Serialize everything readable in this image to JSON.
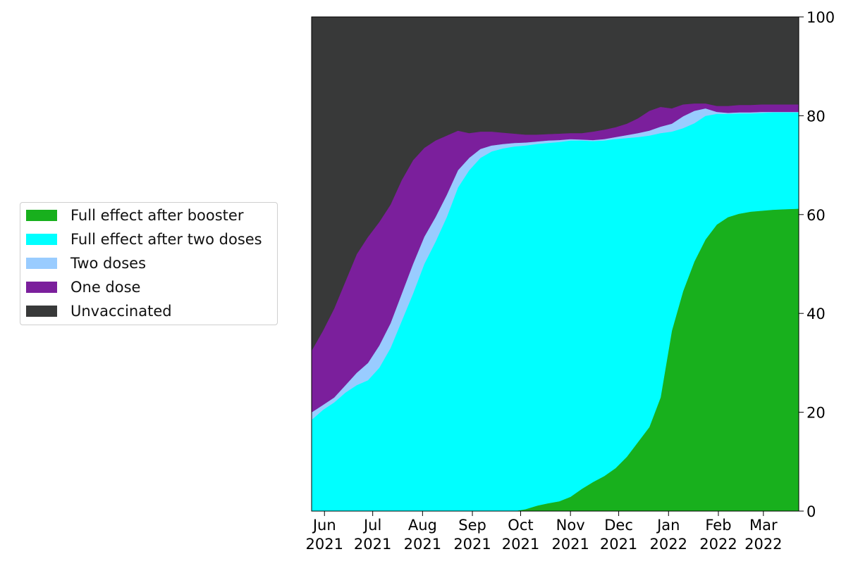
{
  "chart_data": {
    "type": "area",
    "stacked": true,
    "title": "",
    "xlabel": "",
    "ylabel": "",
    "ylim": [
      0,
      100
    ],
    "xlim": [
      "2021-05-24",
      "2022-03-23"
    ],
    "yticks": [
      0,
      20,
      40,
      60,
      80,
      100
    ],
    "yaxis_side": "right",
    "grid": false,
    "legend_placement": "left",
    "xticks": [
      {
        "date": "2021-06-01",
        "month": "Jun",
        "year": "2021"
      },
      {
        "date": "2021-07-01",
        "month": "Jul",
        "year": "2021"
      },
      {
        "date": "2021-08-01",
        "month": "Aug",
        "year": "2021"
      },
      {
        "date": "2021-09-01",
        "month": "Sep",
        "year": "2021"
      },
      {
        "date": "2021-10-01",
        "month": "Oct",
        "year": "2021"
      },
      {
        "date": "2021-11-01",
        "month": "Nov",
        "year": "2021"
      },
      {
        "date": "2021-12-01",
        "month": "Dec",
        "year": "2021"
      },
      {
        "date": "2022-01-01",
        "month": "Jan",
        "year": "2022"
      },
      {
        "date": "2022-02-01",
        "month": "Feb",
        "year": "2022"
      },
      {
        "date": "2022-03-01",
        "month": "Mar",
        "year": "2022"
      }
    ],
    "x": [
      "2021-05-24",
      "2021-05-31",
      "2021-06-07",
      "2021-06-14",
      "2021-06-21",
      "2021-06-28",
      "2021-07-05",
      "2021-07-12",
      "2021-07-19",
      "2021-07-26",
      "2021-08-02",
      "2021-08-09",
      "2021-08-16",
      "2021-08-23",
      "2021-08-30",
      "2021-09-06",
      "2021-09-13",
      "2021-09-20",
      "2021-09-27",
      "2021-10-04",
      "2021-10-11",
      "2021-10-18",
      "2021-10-25",
      "2021-11-01",
      "2021-11-08",
      "2021-11-15",
      "2021-11-22",
      "2021-11-29",
      "2021-12-06",
      "2021-12-13",
      "2021-12-20",
      "2021-12-27",
      "2022-01-03",
      "2022-01-10",
      "2022-01-17",
      "2022-01-24",
      "2022-01-31",
      "2022-02-07",
      "2022-02-14",
      "2022-02-21",
      "2022-02-28",
      "2022-03-07",
      "2022-03-14",
      "2022-03-23"
    ],
    "series": [
      {
        "name": "Full effect after booster",
        "color": "#18b01d",
        "values": [
          0,
          0,
          0,
          0,
          0,
          0,
          0,
          0,
          0,
          0,
          0,
          0,
          0,
          0,
          0,
          0,
          0,
          0,
          0,
          0.4,
          1.1,
          1.6,
          2.0,
          2.9,
          4.5,
          5.9,
          7.1,
          8.7,
          11.0,
          14.0,
          17.0,
          23.0,
          36.5,
          44.5,
          50.5,
          55.0,
          58.0,
          59.5,
          60.2,
          60.6,
          60.8,
          61.0,
          61.1,
          61.2
        ]
      },
      {
        "name": "Full effect after two doses",
        "color": "#00ffff",
        "values": [
          18.5,
          20.5,
          22.0,
          24.0,
          25.5,
          26.5,
          29.0,
          33.0,
          38.5,
          44.0,
          50.0,
          54.5,
          59.5,
          65.5,
          69.0,
          71.5,
          72.8,
          73.4,
          73.8,
          73.6,
          73.2,
          72.9,
          72.7,
          72.1,
          70.5,
          69.0,
          67.9,
          66.6,
          64.5,
          61.7,
          59.0,
          53.5,
          40.3,
          33.0,
          28.0,
          25.0,
          22.4,
          20.9,
          20.3,
          19.9,
          19.8,
          19.7,
          19.6,
          19.5
        ]
      },
      {
        "name": "Two doses",
        "color": "#99ccff",
        "values": [
          1.5,
          1.0,
          1.0,
          1.5,
          2.5,
          3.5,
          4.5,
          5.0,
          5.5,
          6.0,
          5.5,
          5.0,
          4.5,
          3.5,
          2.5,
          1.8,
          1.2,
          0.9,
          0.7,
          0.6,
          0.5,
          0.5,
          0.4,
          0.3,
          0.2,
          0.2,
          0.3,
          0.4,
          0.6,
          0.8,
          1.0,
          1.3,
          1.6,
          2.4,
          2.5,
          1.5,
          0.4,
          0.2,
          0.2,
          0.2,
          0.2,
          0.1,
          0.1,
          0.1
        ]
      },
      {
        "name": "One dose",
        "color": "#7b1f9c",
        "values": [
          12.5,
          15.0,
          18.0,
          21.0,
          24.0,
          25.5,
          25.0,
          24.0,
          23.0,
          21.0,
          18.0,
          15.5,
          12.0,
          8.0,
          5.0,
          3.5,
          2.8,
          2.3,
          1.9,
          1.6,
          1.4,
          1.3,
          1.3,
          1.2,
          1.3,
          1.7,
          1.9,
          2.0,
          2.3,
          3.0,
          4.0,
          4.0,
          3.1,
          2.4,
          1.5,
          1.0,
          1.2,
          1.4,
          1.5,
          1.5,
          1.5,
          1.5,
          1.5,
          1.5
        ]
      },
      {
        "name": "Unvaccinated",
        "color": "#383939",
        "values": [
          67.5,
          63.5,
          59.0,
          53.5,
          48.0,
          44.5,
          41.5,
          38.0,
          33.0,
          29.0,
          26.5,
          25.0,
          24.0,
          23.0,
          23.5,
          23.2,
          23.2,
          23.4,
          23.6,
          23.8,
          23.8,
          23.7,
          23.6,
          23.5,
          23.5,
          23.2,
          22.8,
          22.3,
          21.6,
          20.5,
          19.0,
          18.2,
          18.5,
          17.7,
          17.5,
          17.5,
          18.0,
          18.0,
          17.8,
          17.8,
          17.7,
          17.7,
          17.7,
          17.7
        ]
      }
    ]
  }
}
